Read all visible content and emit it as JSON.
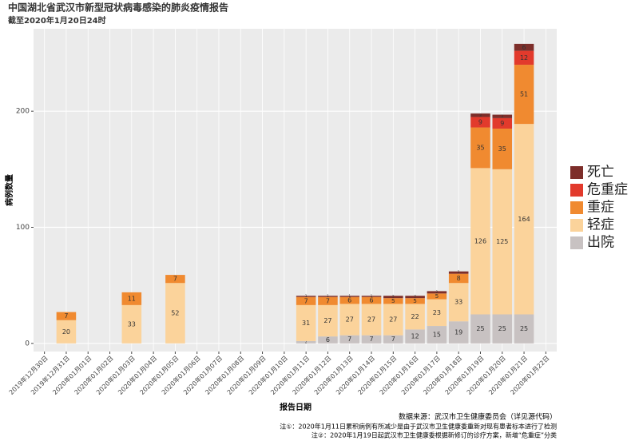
{
  "chart_data": {
    "type": "stacked_bar",
    "title": "中国湖北省武汉市新型冠状病毒感染的肺炎疫情报告",
    "subtitle": "截至2020年1月20日24时",
    "x_label": "报告日期",
    "y_label": "病例数量",
    "source": "数据来源：武汉市卫生健康委员会（详见源代码）",
    "notes": [
      "注①：2020年1月11日累积病例有所减少是由于武汉市卫生健康委重新对现有患者标本进行了检测",
      "注②：2020年1月19日起武汉市卫生健康委根据新修订的诊疗方案，新增“危重症”分类"
    ],
    "categories": [
      "2019年12月30日",
      "2019年12月31日",
      "2020年01月01日",
      "2020年01月02日",
      "2020年01月03日",
      "2020年01月04日",
      "2020年01月05日",
      "2020年01月06日",
      "2020年01月07日",
      "2020年01月08日",
      "2020年01月09日",
      "2020年01月10日",
      "2020年01月11日",
      "2020年01月12日",
      "2020年01月13日",
      "2020年01月14日",
      "2020年01月15日",
      "2020年01月16日",
      "2020年01月17日",
      "2020年01月18日",
      "2020年01月19日",
      "2020年01月20日",
      "2020年01月21日",
      "2020年01月22日"
    ],
    "series": [
      {
        "name": "出院",
        "color": "#c8c2c2",
        "values": [
          null,
          null,
          null,
          null,
          null,
          null,
          null,
          null,
          null,
          null,
          null,
          null,
          2,
          6,
          7,
          7,
          7,
          12,
          15,
          19,
          25,
          25,
          25,
          null
        ]
      },
      {
        "name": "轻症",
        "color": "#fbd39b",
        "values": [
          null,
          20,
          null,
          null,
          33,
          null,
          52,
          null,
          null,
          null,
          null,
          null,
          31,
          27,
          27,
          27,
          27,
          22,
          23,
          33,
          126,
          125,
          164,
          null
        ]
      },
      {
        "name": "重症",
        "color": "#f08a30",
        "values": [
          null,
          7,
          null,
          null,
          11,
          null,
          7,
          null,
          null,
          null,
          null,
          null,
          7,
          7,
          6,
          6,
          5,
          5,
          5,
          8,
          35,
          35,
          51,
          null
        ]
      },
      {
        "name": "危重症",
        "color": "#e23a2c",
        "values": [
          null,
          null,
          null,
          null,
          null,
          null,
          null,
          null,
          null,
          null,
          null,
          null,
          null,
          null,
          null,
          null,
          null,
          null,
          null,
          null,
          9,
          9,
          12,
          null
        ]
      },
      {
        "name": "死亡",
        "color": "#7d2e2a",
        "values": [
          null,
          null,
          null,
          null,
          null,
          null,
          null,
          null,
          null,
          null,
          null,
          null,
          1,
          1,
          1,
          1,
          2,
          2,
          2,
          2,
          3,
          3,
          6,
          null
        ]
      }
    ],
    "ylim": [
      -7,
      271
    ],
    "yticks": [
      0,
      100,
      200
    ],
    "grid": true,
    "legend": "right"
  }
}
